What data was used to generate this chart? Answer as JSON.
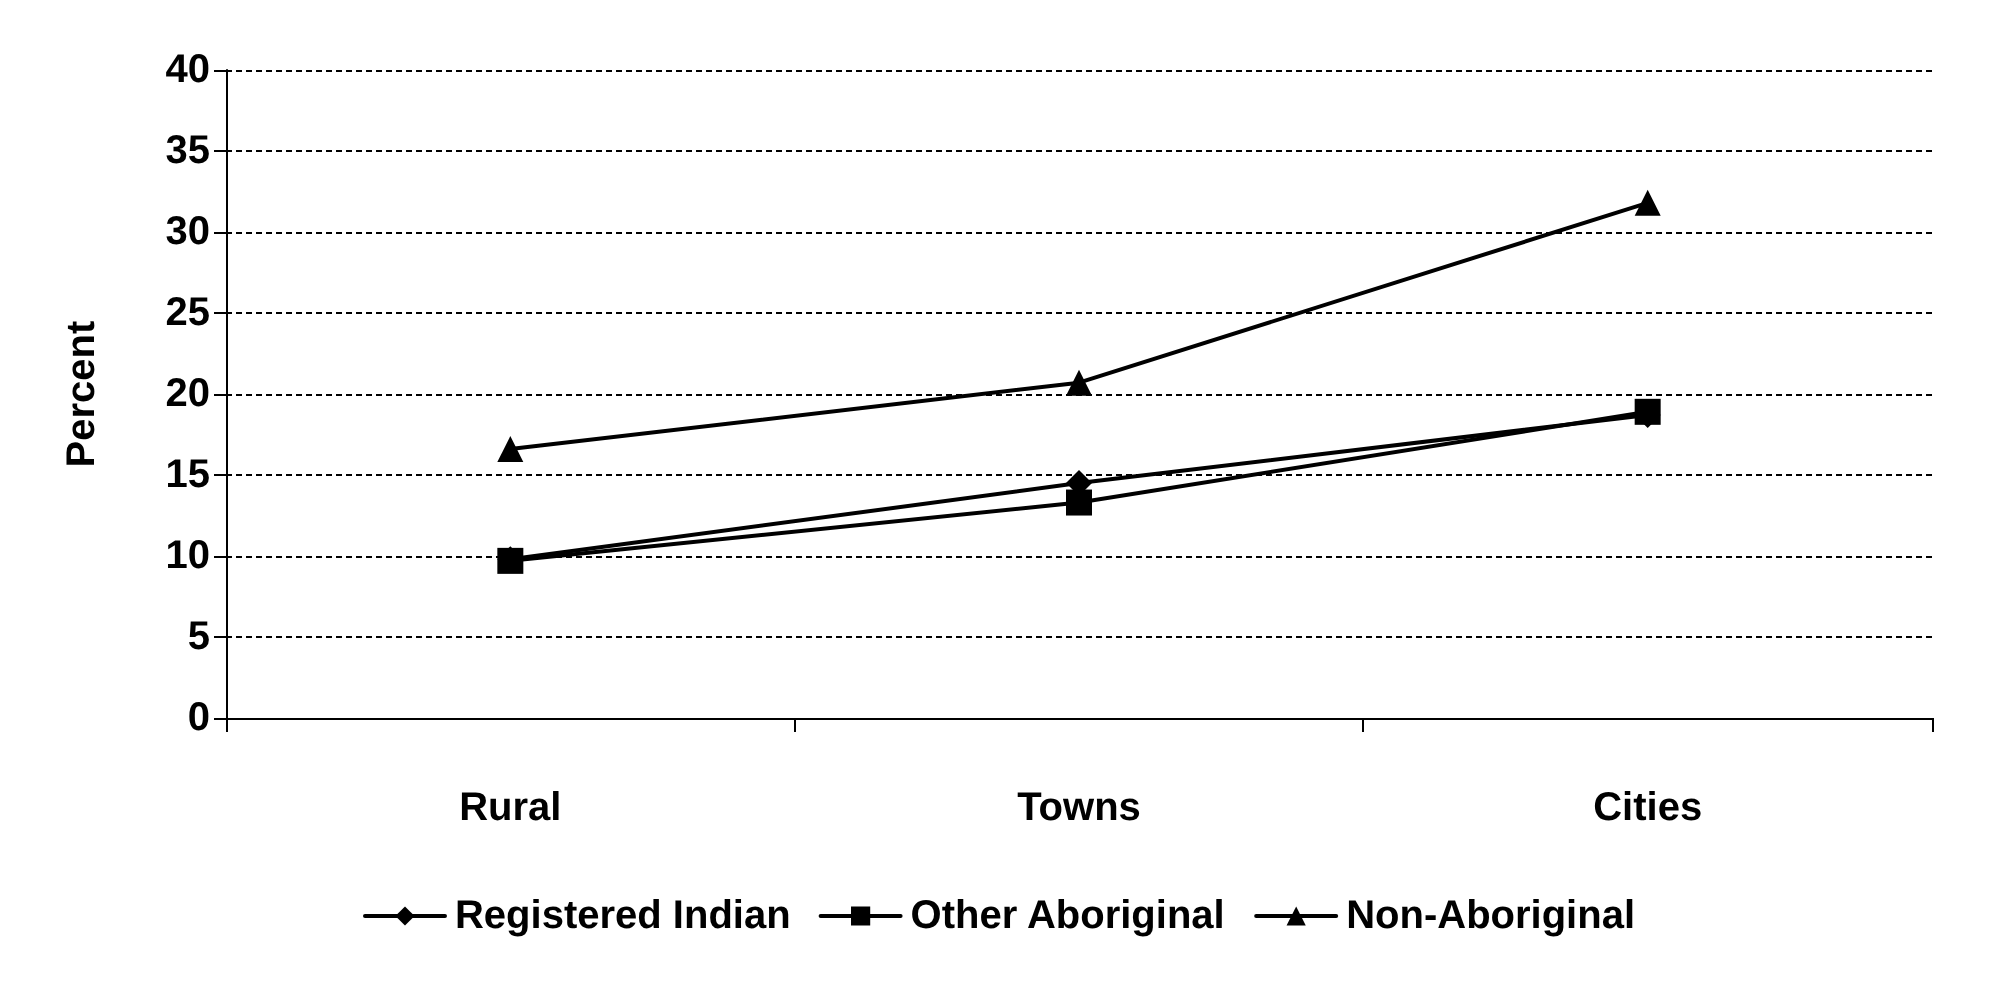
{
  "chart_data": {
    "type": "line",
    "ylabel": "Percent",
    "categories": [
      "Rural",
      "Towns",
      "Cities"
    ],
    "series": [
      {
        "name": "Registered Indian",
        "color": "#000000",
        "marker": "diamond",
        "values": [
          9.8,
          14.5,
          18.7
        ]
      },
      {
        "name": "Other Aboriginal",
        "color": "#000000",
        "marker": "square",
        "values": [
          9.7,
          13.3,
          18.9
        ]
      },
      {
        "name": "Non-Aboriginal",
        "color": "#000000",
        "marker": "triangle",
        "values": [
          16.6,
          20.7,
          31.8
        ]
      }
    ],
    "ylim": [
      0,
      40
    ],
    "yticks": [
      0,
      5,
      10,
      15,
      20,
      25,
      30,
      35,
      40
    ],
    "grid": "y",
    "legend": "bottom",
    "line_style": "solid"
  }
}
